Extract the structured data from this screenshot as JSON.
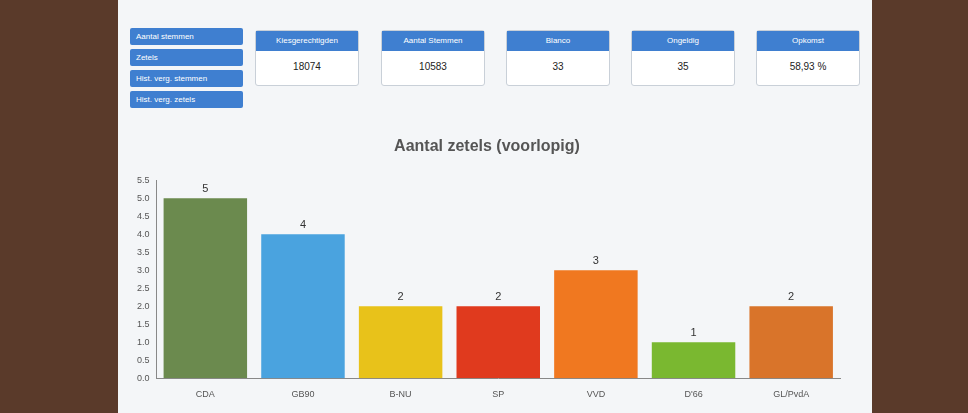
{
  "buttons": [
    "Aantal stemmen",
    "Zetels",
    "Hist. verg. stemmen",
    "Hist. verg. zetels"
  ],
  "stats": [
    {
      "label": "Kiesgerechtigden",
      "value": "18074"
    },
    {
      "label": "Aantal Stemmen",
      "value": "10583"
    },
    {
      "label": "Blanco",
      "value": "33"
    },
    {
      "label": "Ongeldig",
      "value": "35"
    },
    {
      "label": "Opkomst",
      "value": "58,93 %"
    }
  ],
  "chart_data": {
    "type": "bar",
    "title": "Aantal zetels (voorlopig)",
    "categories": [
      "CDA",
      "GB90",
      "B-NU",
      "SP",
      "VVD",
      "D'66",
      "GL/PvdA"
    ],
    "values": [
      5,
      4,
      2,
      2,
      3,
      1,
      2
    ],
    "colors": [
      "#6b8a4e",
      "#4aa3df",
      "#e8c21a",
      "#e03a1e",
      "#f07820",
      "#7ab830",
      "#d9742a"
    ],
    "ylim": [
      0,
      5.5
    ],
    "yticks": [
      {
        "value": 0,
        "label": "0.0"
      },
      {
        "value": 0.5,
        "label": "0.5"
      },
      {
        "value": 1,
        "label": "1.0"
      },
      {
        "value": 1.5,
        "label": "1.5"
      },
      {
        "value": 2,
        "label": "2.0"
      },
      {
        "value": 2.5,
        "label": "2.5"
      },
      {
        "value": 3,
        "label": "3.0"
      },
      {
        "value": 3.5,
        "label": "3.5"
      },
      {
        "value": 4,
        "label": "4.0"
      },
      {
        "value": 4.5,
        "label": "4.5"
      },
      {
        "value": 5,
        "label": "5.0"
      },
      {
        "value": 5.5,
        "label": "5.5"
      }
    ],
    "grid": false,
    "data_labels": true
  }
}
